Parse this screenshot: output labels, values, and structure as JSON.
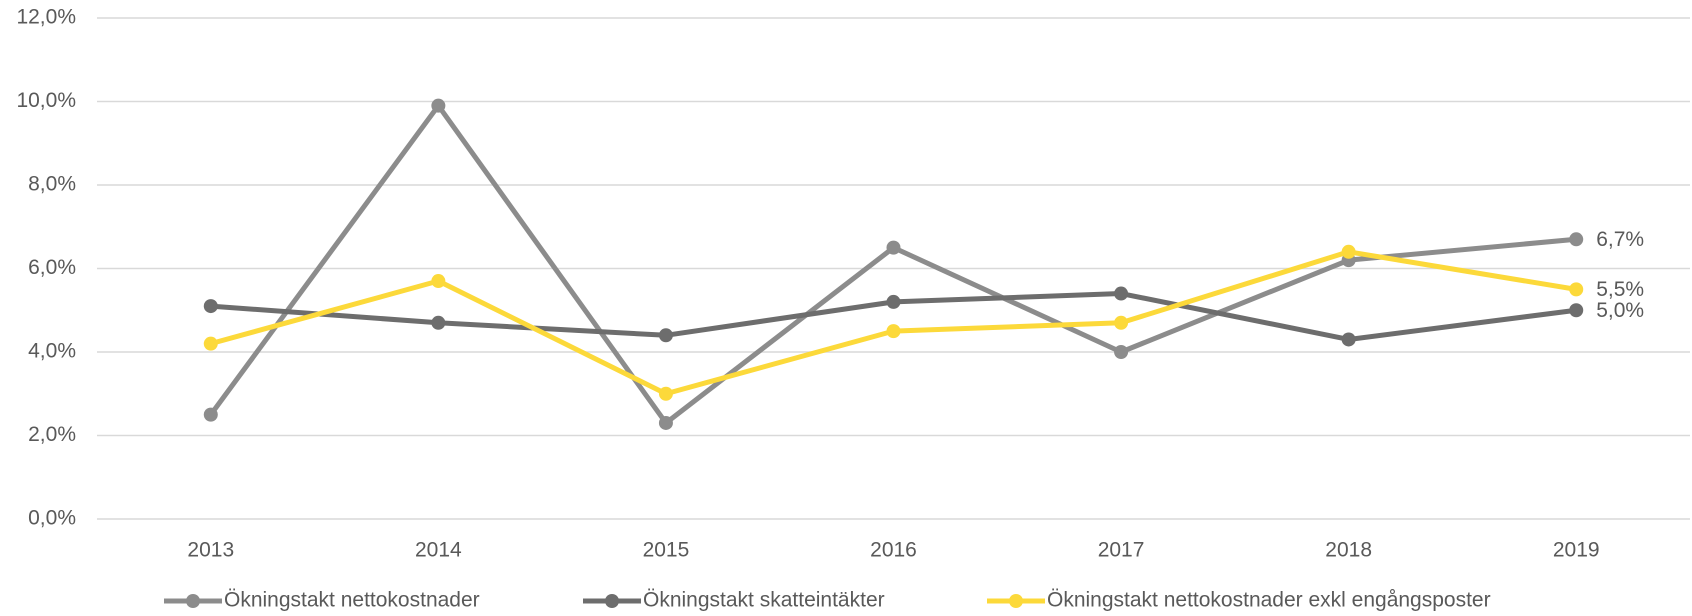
{
  "chart_data": {
    "type": "line",
    "categories": [
      "2013",
      "2014",
      "2015",
      "2016",
      "2017",
      "2018",
      "2019"
    ],
    "series": [
      {
        "name": "Ökningstakt nettokostnader",
        "color": "#8c8c8c",
        "values": [
          2.5,
          9.9,
          2.3,
          6.5,
          4.0,
          6.2,
          6.7
        ],
        "value_labels": [
          null,
          null,
          null,
          null,
          null,
          null,
          "6,7%"
        ]
      },
      {
        "name": "Ökningstakt skatteintäkter",
        "color": "#6d6d6d",
        "values": [
          5.1,
          4.7,
          4.4,
          5.2,
          5.4,
          4.3,
          5.0
        ],
        "value_labels": [
          null,
          null,
          null,
          null,
          null,
          null,
          "5,0%"
        ]
      },
      {
        "name": "Ökningstakt nettokostnader exkl engångsposter",
        "color": "#fcd93a",
        "values": [
          4.2,
          5.7,
          3.0,
          4.5,
          4.7,
          6.4,
          5.5
        ],
        "value_labels": [
          null,
          null,
          null,
          null,
          null,
          null,
          "5,5%"
        ]
      }
    ],
    "ylim": [
      0,
      12
    ],
    "yticks": [
      {
        "value": 0,
        "label": "0,0%"
      },
      {
        "value": 2,
        "label": "2,0%"
      },
      {
        "value": 4,
        "label": "4,0%"
      },
      {
        "value": 6,
        "label": "6,0%"
      },
      {
        "value": 8,
        "label": "8,0%"
      },
      {
        "value": 10,
        "label": "10,0%"
      },
      {
        "value": 12,
        "label": "12,0%"
      }
    ],
    "grid": true,
    "legend": "bottom"
  }
}
